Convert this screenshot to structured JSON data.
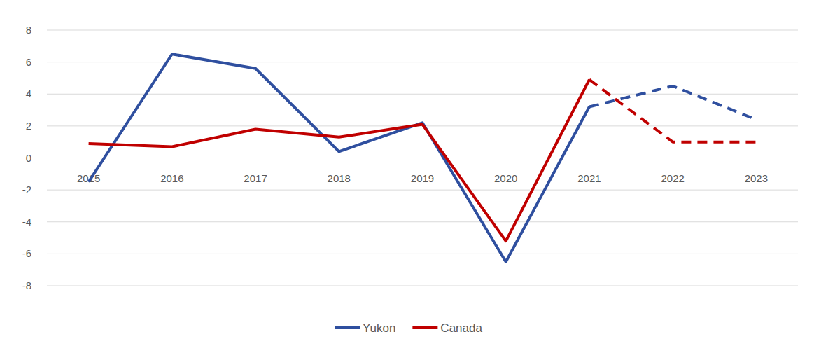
{
  "chart_data": {
    "type": "line",
    "categories": [
      "2015",
      "2016",
      "2017",
      "2018",
      "2019",
      "2020",
      "2021",
      "2022",
      "2023"
    ],
    "series": [
      {
        "name": "Yukon",
        "color": "#2f4f9f",
        "line_style": "solid",
        "values": [
          -1.5,
          6.5,
          5.6,
          0.4,
          2.2,
          -6.5,
          3.2,
          null,
          null
        ]
      },
      {
        "name": "Canada",
        "color": "#c00000",
        "line_style": "solid",
        "values": [
          0.9,
          0.7,
          1.8,
          1.3,
          2.1,
          -5.2,
          4.9,
          null,
          null
        ]
      },
      {
        "name": "Yukon",
        "color": "#2f4f9f",
        "line_style": "dashed",
        "values": [
          null,
          null,
          null,
          null,
          null,
          null,
          3.2,
          4.5,
          2.4
        ]
      },
      {
        "name": "Canada",
        "color": "#c00000",
        "line_style": "dashed",
        "values": [
          null,
          null,
          null,
          null,
          null,
          null,
          4.9,
          1.0,
          1.0
        ]
      }
    ],
    "ylim": [
      -8,
      8
    ],
    "yticks": [
      -8,
      -6,
      -4,
      -2,
      0,
      2,
      4,
      6,
      8
    ],
    "grid": true,
    "legend": "bottom",
    "marker": "none"
  }
}
